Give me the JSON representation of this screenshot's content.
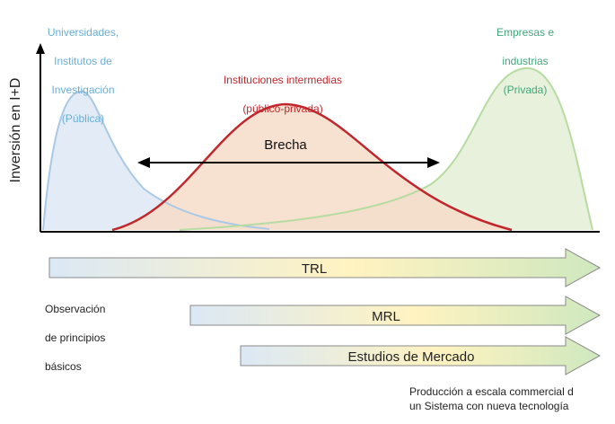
{
  "y_axis_label": "Inversión en I+D",
  "groups": {
    "public": {
      "lines": [
        "Universidades,",
        "Institutos de",
        "Investigación",
        "(Pública)"
      ],
      "color": "#6aaed6"
    },
    "intermediate": {
      "lines": [
        "Instituciones intermedias",
        "(público-privada)"
      ],
      "color": "#c0272d"
    },
    "private": {
      "lines": [
        "Empresas e",
        "industrias",
        "(Privada)"
      ],
      "color": "#3fa87a"
    }
  },
  "gap_label": "Brecha",
  "bars": [
    {
      "label": "TRL"
    },
    {
      "label": "MRL"
    },
    {
      "label": "Estudios de Mercado"
    }
  ],
  "start_note": [
    "Observación",
    "de principios",
    "básicos"
  ],
  "end_note": [
    "Producción a escala commercial d",
    "un Sistema con nueva tecnología"
  ],
  "colors": {
    "public_fill": "#dde8f4",
    "intermediate_fill": "#f6dcc9",
    "private_fill": "#e4efd6",
    "bar_start": "#dbe8f5",
    "bar_mid": "#fff3c0",
    "bar_end": "#cfe8bf"
  }
}
